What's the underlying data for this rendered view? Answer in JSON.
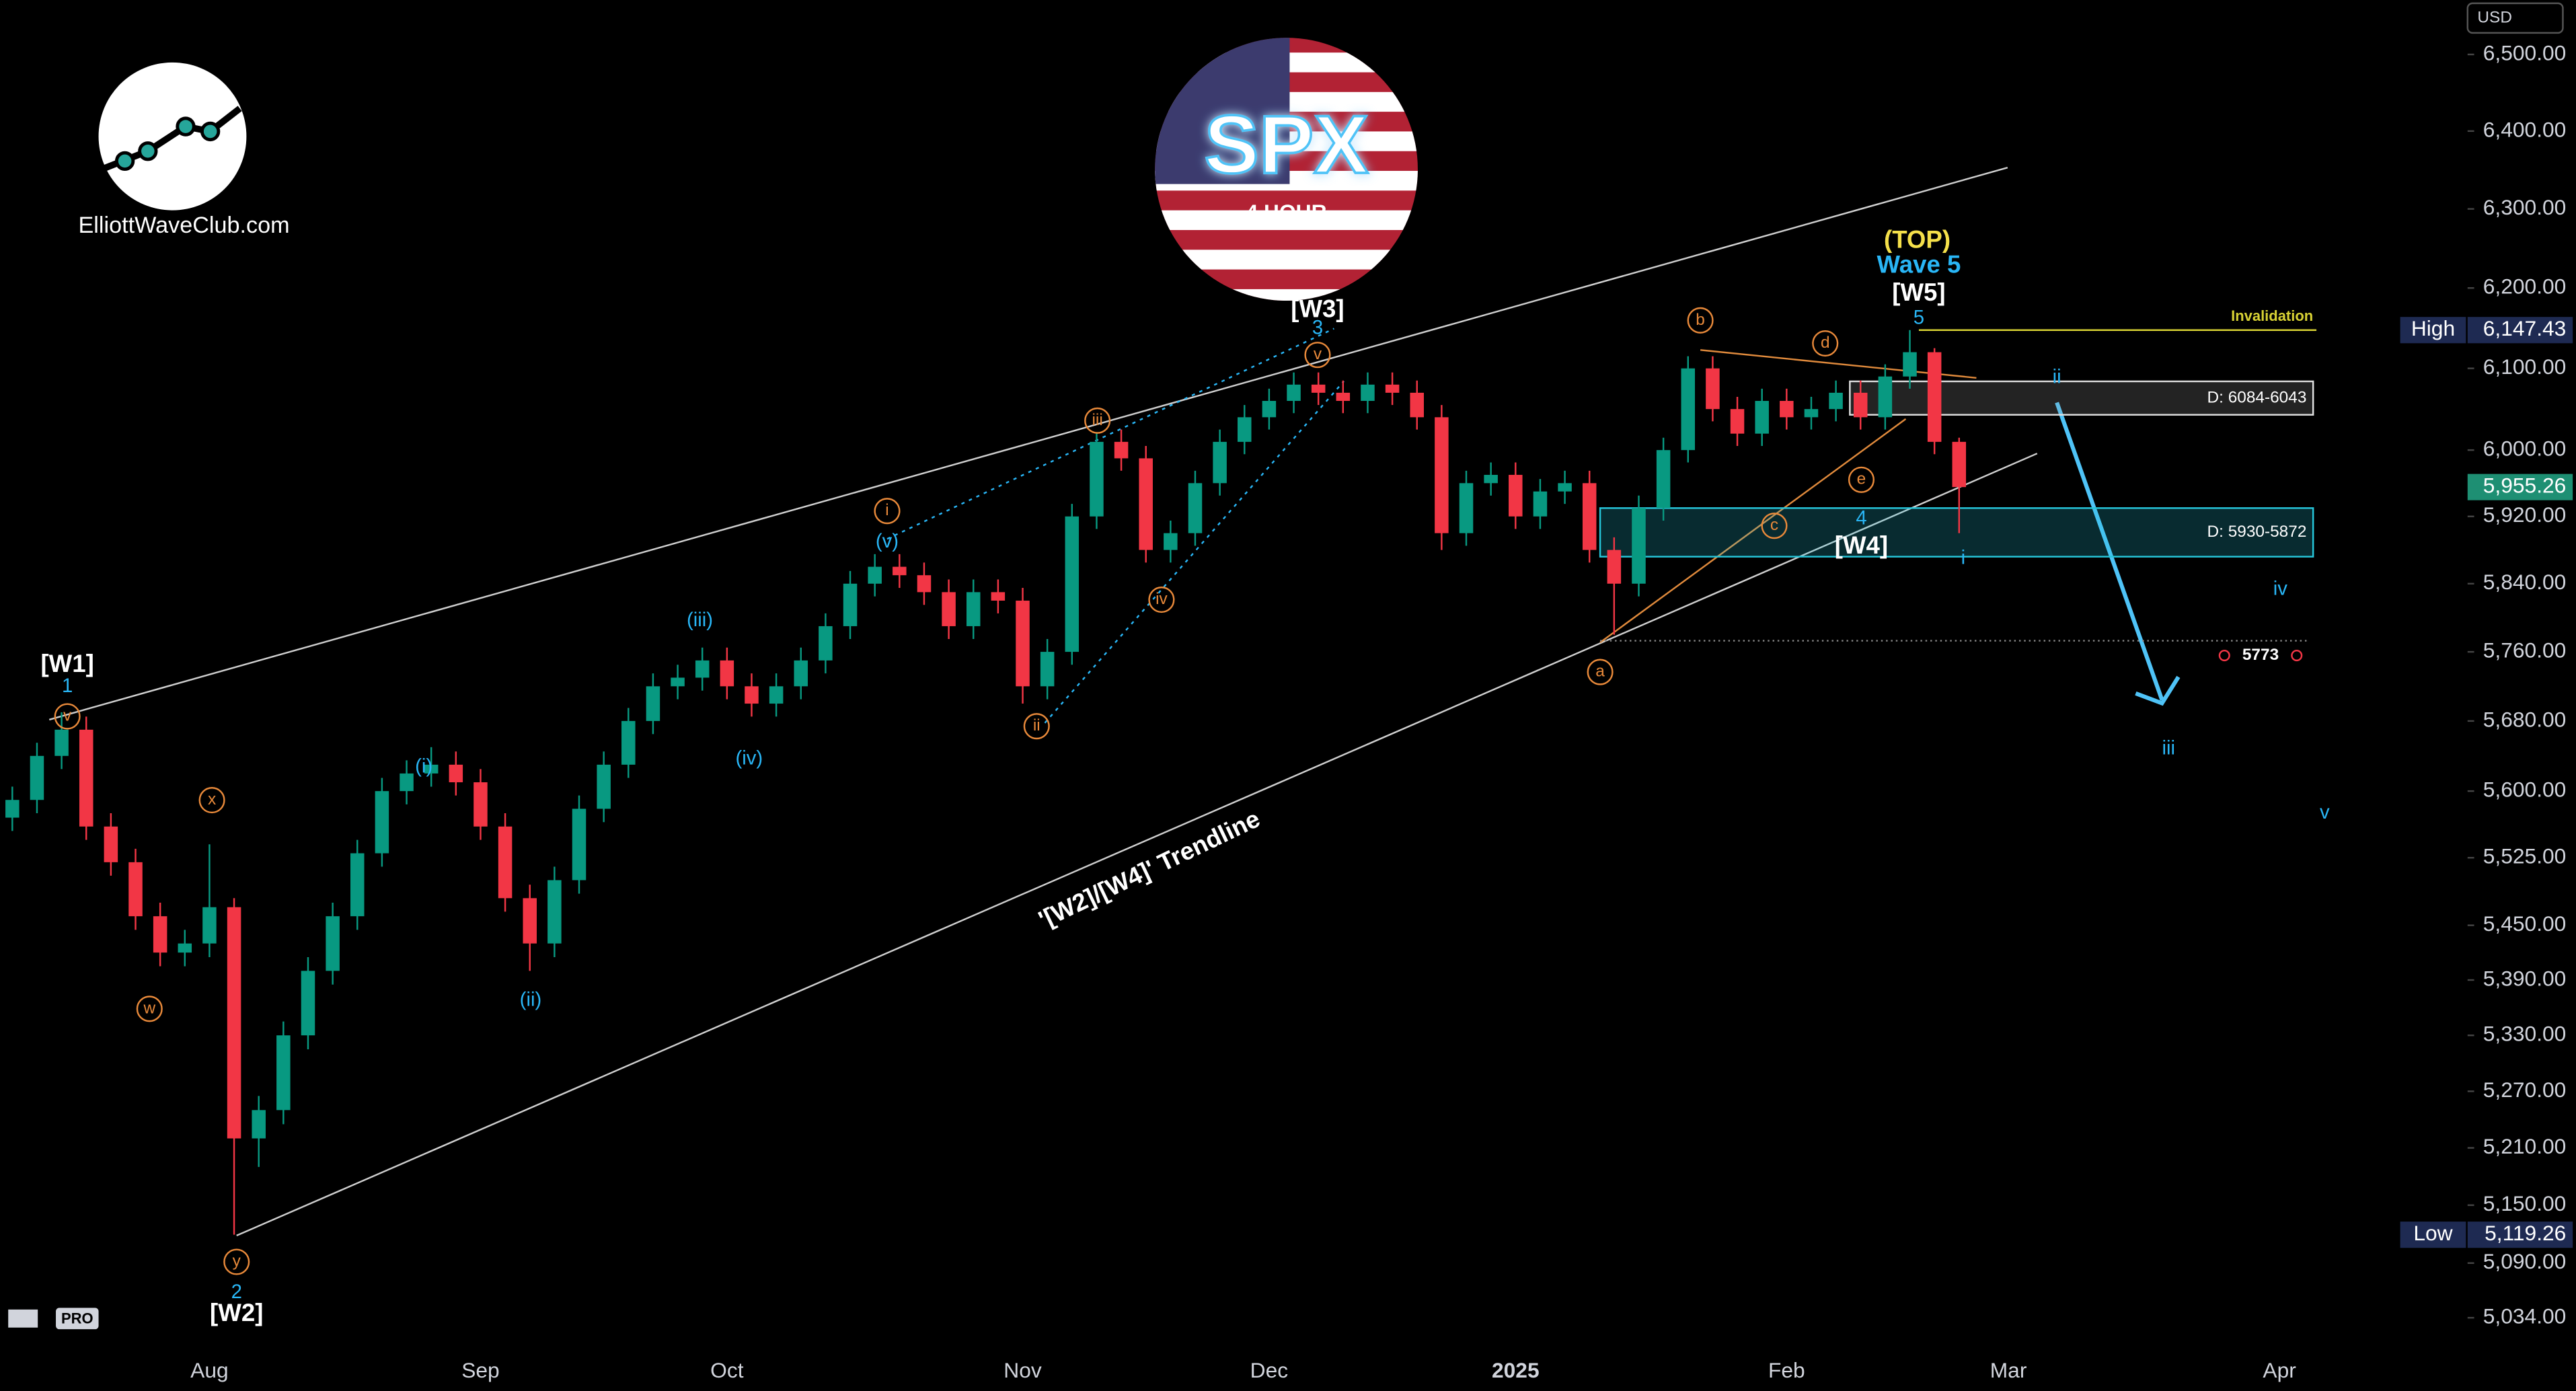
{
  "chart_data": {
    "type": "candlestick",
    "log_scale": true,
    "grid": false,
    "currency": "USD",
    "up_color": "#089981",
    "down_color": "#f23645",
    "ylim": [
      5004,
      6572
    ],
    "yticks": [
      {
        "value": 6500,
        "label": "6,500.00"
      },
      {
        "value": 6400,
        "label": "6,400.00"
      },
      {
        "value": 6300,
        "label": "6,300.00"
      },
      {
        "value": 6200,
        "label": "6,200.00"
      },
      {
        "value": 6100,
        "label": "6,100.00"
      },
      {
        "value": 6000,
        "label": "6,000.00"
      },
      {
        "value": 5920,
        "label": "5,920.00"
      },
      {
        "value": 5840,
        "label": "5,840.00"
      },
      {
        "value": 5760,
        "label": "5,760.00"
      },
      {
        "value": 5680,
        "label": "5,680.00"
      },
      {
        "value": 5600,
        "label": "5,600.00"
      },
      {
        "value": 5525,
        "label": "5,525.00"
      },
      {
        "value": 5450,
        "label": "5,450.00"
      },
      {
        "value": 5390,
        "label": "5,390.00"
      },
      {
        "value": 5330,
        "label": "5,330.00"
      },
      {
        "value": 5270,
        "label": "5,270.00"
      },
      {
        "value": 5210,
        "label": "5,210.00"
      },
      {
        "value": 5150,
        "label": "5,150.00"
      },
      {
        "value": 5090,
        "label": "5,090.00"
      },
      {
        "value": 5034,
        "label": "5,034.00"
      }
    ],
    "categories": [
      null,
      null,
      null,
      null,
      null,
      null,
      null,
      null,
      "Aug",
      null,
      null,
      null,
      null,
      null,
      null,
      null,
      null,
      null,
      null,
      "Sep",
      null,
      null,
      null,
      null,
      null,
      null,
      null,
      null,
      null,
      "Oct",
      null,
      null,
      null,
      null,
      null,
      null,
      null,
      null,
      null,
      null,
      null,
      "Nov",
      null,
      null,
      null,
      null,
      null,
      null,
      null,
      null,
      null,
      "Dec",
      null,
      null,
      null,
      null,
      null,
      null,
      null,
      null,
      null,
      "2025",
      null,
      null,
      null,
      null,
      null,
      null,
      null,
      null,
      null,
      null,
      "Feb",
      null,
      null,
      null,
      null,
      null,
      null,
      null,
      null,
      "Mar",
      null,
      null,
      null,
      null,
      null,
      null,
      null,
      null,
      null,
      null,
      "Apr",
      null,
      null,
      null,
      null,
      null,
      null,
      null
    ],
    "open": [
      5570,
      5590,
      5640,
      5670,
      5560,
      5520,
      5460,
      5420,
      5430,
      5470,
      5220,
      5250,
      5330,
      5400,
      5460,
      5530,
      5600,
      5620,
      5630,
      5610,
      5560,
      5480,
      5430,
      5500,
      5580,
      5630,
      5680,
      5720,
      5730,
      5750,
      5720,
      5700,
      5720,
      5750,
      5790,
      5840,
      5860,
      5850,
      5830,
      5790,
      5830,
      5820,
      5720,
      5760,
      5920,
      6010,
      5990,
      5880,
      5900,
      5960,
      6010,
      6040,
      6060,
      6080,
      6070,
      6060,
      6080,
      6070,
      6040,
      5900,
      5960,
      5970,
      5920,
      5950,
      5960,
      5880,
      5840,
      5930,
      6000,
      6100,
      6050,
      6020,
      6060,
      6040,
      6050,
      6070,
      6040,
      6090,
      6120,
      6010,
      null,
      null,
      null,
      null,
      null,
      null,
      null,
      null,
      null,
      null,
      null,
      null,
      null,
      null,
      null,
      null,
      null,
      null,
      null,
      null
    ],
    "high": [
      5605,
      5655,
      5690,
      5685,
      5575,
      5535,
      5475,
      5445,
      5540,
      5480,
      5265,
      5345,
      5415,
      5475,
      5545,
      5615,
      5635,
      5650,
      5645,
      5625,
      5575,
      5495,
      5515,
      5595,
      5645,
      5695,
      5735,
      5745,
      5765,
      5765,
      5735,
      5735,
      5765,
      5805,
      5855,
      5875,
      5875,
      5865,
      5845,
      5845,
      5845,
      5835,
      5775,
      5935,
      6020,
      6025,
      6005,
      5915,
      5975,
      6025,
      6055,
      6075,
      6095,
      6095,
      6085,
      6095,
      6095,
      6085,
      6055,
      5975,
      5985,
      5985,
      5965,
      5975,
      5975,
      5895,
      5945,
      6015,
      6115,
      6115,
      6065,
      6075,
      6075,
      6065,
      6085,
      6085,
      6105,
      6147.43,
      6125,
      6015,
      null,
      null,
      null,
      null,
      null,
      null,
      null,
      null,
      null,
      null,
      null,
      null,
      null,
      null,
      null,
      null,
      null,
      null,
      null,
      null
    ],
    "low": [
      5555,
      5575,
      5625,
      5545,
      5505,
      5445,
      5405,
      5405,
      5415,
      5119.26,
      5190,
      5235,
      5315,
      5385,
      5445,
      5515,
      5585,
      5605,
      5595,
      5545,
      5465,
      5400,
      5415,
      5485,
      5565,
      5615,
      5665,
      5705,
      5715,
      5705,
      5685,
      5685,
      5705,
      5735,
      5775,
      5825,
      5835,
      5815,
      5775,
      5775,
      5805,
      5700,
      5705,
      5745,
      5905,
      5975,
      5865,
      5865,
      5885,
      5945,
      5995,
      6025,
      6045,
      6055,
      6045,
      6045,
      6055,
      6025,
      5880,
      5885,
      5945,
      5905,
      5905,
      5935,
      5865,
      5780,
      5825,
      5915,
      5985,
      6035,
      6005,
      6005,
      6025,
      6025,
      6035,
      6025,
      6025,
      6075,
      5995,
      5900,
      null,
      null,
      null,
      null,
      null,
      null,
      null,
      null,
      null,
      null,
      null,
      null,
      null,
      null,
      null,
      null,
      null,
      null,
      null,
      null
    ],
    "close": [
      5590,
      5640,
      5670,
      5560,
      5520,
      5460,
      5420,
      5430,
      5470,
      5220,
      5250,
      5330,
      5400,
      5460,
      5530,
      5600,
      5620,
      5630,
      5610,
      5560,
      5480,
      5430,
      5500,
      5580,
      5630,
      5680,
      5720,
      5730,
      5750,
      5720,
      5700,
      5720,
      5750,
      5790,
      5840,
      5860,
      5850,
      5830,
      5790,
      5830,
      5820,
      5720,
      5760,
      5920,
      6010,
      5990,
      5880,
      5900,
      5960,
      6010,
      6040,
      6060,
      6080,
      6070,
      6060,
      6080,
      6070,
      6040,
      5900,
      5960,
      5970,
      5920,
      5950,
      5960,
      5880,
      5840,
      5930,
      6000,
      6100,
      6050,
      6020,
      6060,
      6040,
      6050,
      6070,
      6040,
      6090,
      6120,
      6010,
      5955.26,
      null,
      null,
      null,
      null,
      null,
      null,
      null,
      null,
      null,
      null,
      null,
      null,
      null,
      null,
      null,
      null,
      null,
      null,
      null,
      null
    ],
    "price_markers": [
      {
        "name": "High",
        "value": 6147.43,
        "label": "6,147.43",
        "color": "#1e2a52"
      },
      {
        "name": "Low",
        "value": 5119.26,
        "label": "5,119.26",
        "color": "#1e2a52"
      },
      {
        "name": null,
        "value": 5955.26,
        "label": "5,955.26",
        "color": "#1e8f73"
      }
    ],
    "zones": [
      {
        "label": "D: 6084-6043",
        "from": 6084,
        "to": 6043,
        "color": "#9e9e9e"
      },
      {
        "label": "D: 5930-5872",
        "from": 5930,
        "to": 5872,
        "color": "#26c6da"
      }
    ],
    "invalidation": {
      "label": "Invalidation",
      "value": 6147.43,
      "color": "#d8d234"
    },
    "target": 5773,
    "annotations": [
      "[W1]",
      "1",
      "v",
      "x",
      "w",
      "y",
      "2",
      "[W2]",
      "(i)",
      "(ii)",
      "(iii)",
      "(iv)",
      "(v)",
      "i",
      "ii",
      "iii",
      "iv",
      "v",
      "3",
      "[W3]",
      "a",
      "b",
      "c",
      "d",
      "e",
      "4",
      "[W4]",
      "5",
      "[W5]",
      "Wave 5",
      "(TOP)",
      "i",
      "ii",
      "iii",
      "iv",
      "v",
      "'[W2]/[W4]' Trendline"
    ],
    "branding": {
      "site": "ElliottWaveClub.com",
      "symbol": "SPX",
      "timeframe": "4 HOUR",
      "badge": "PRO"
    }
  }
}
